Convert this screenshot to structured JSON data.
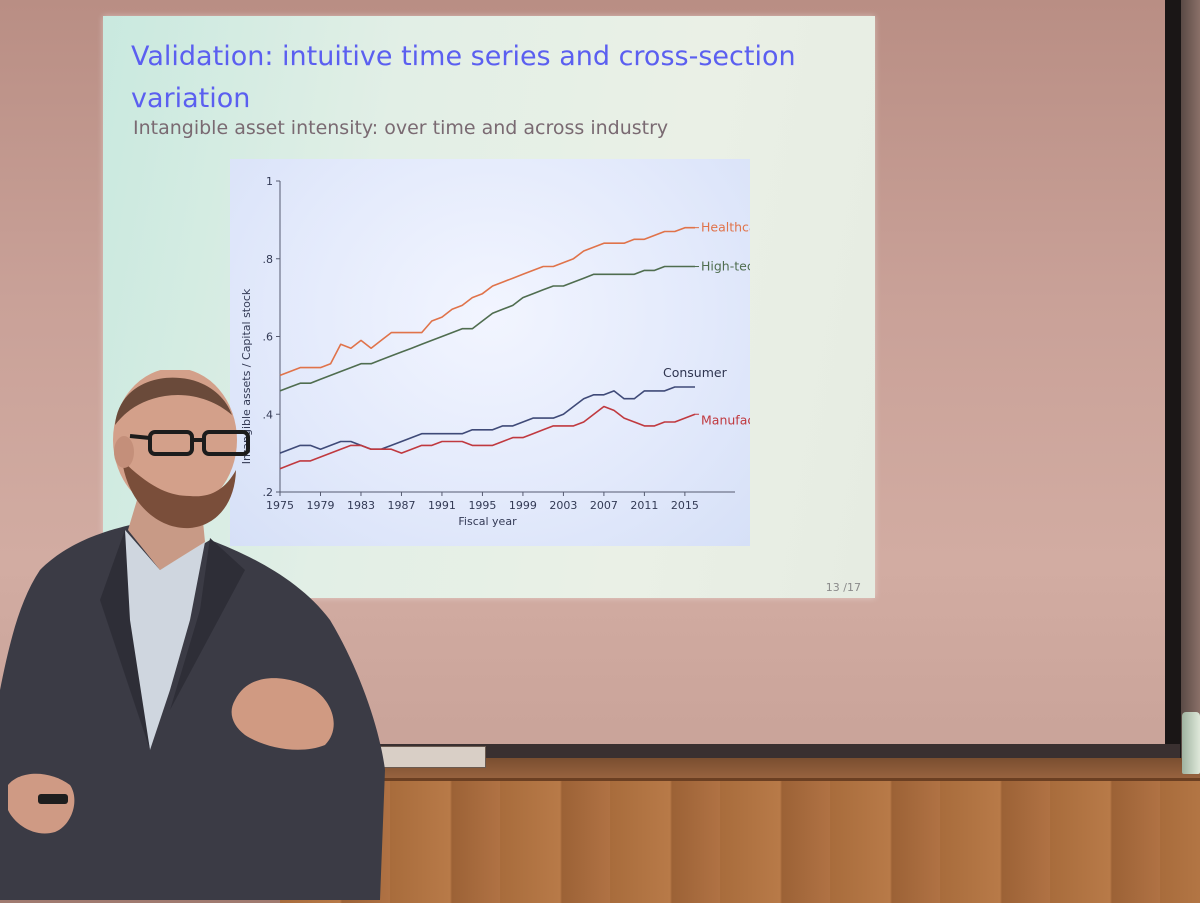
{
  "slide": {
    "title": "Validation: intuitive time series and cross-section variation",
    "subtitle": "Intangible asset intensity: over time and across industry",
    "page_number": "13 /17"
  },
  "chart_data": {
    "type": "line",
    "xlabel": "Fiscal year",
    "ylabel": "Intangible assets / Capital stock",
    "xlim": [
      1975,
      2016
    ],
    "ylim": [
      0.2,
      1.0
    ],
    "xticks": [
      "1975",
      "1979",
      "1983",
      "1987",
      "1991",
      "1995",
      "1999",
      "2003",
      "2007",
      "2011",
      "2015"
    ],
    "yticks": [
      "1",
      ".8",
      ".6",
      ".4",
      ".2"
    ],
    "ytick_values": [
      1.0,
      0.8,
      0.6,
      0.4,
      0.2
    ],
    "x": [
      1975,
      1976,
      1977,
      1978,
      1979,
      1980,
      1981,
      1982,
      1983,
      1984,
      1985,
      1986,
      1987,
      1988,
      1989,
      1990,
      1991,
      1992,
      1993,
      1994,
      1995,
      1996,
      1997,
      1998,
      1999,
      2000,
      2001,
      2002,
      2003,
      2004,
      2005,
      2006,
      2007,
      2008,
      2009,
      2010,
      2011,
      2012,
      2013,
      2014,
      2015,
      2016
    ],
    "series": [
      {
        "name": "Healthcare",
        "color": "#e0734a",
        "values": [
          0.5,
          0.51,
          0.52,
          0.52,
          0.52,
          0.53,
          0.58,
          0.57,
          0.59,
          0.57,
          0.59,
          0.61,
          0.61,
          0.61,
          0.61,
          0.64,
          0.65,
          0.67,
          0.68,
          0.7,
          0.71,
          0.73,
          0.74,
          0.75,
          0.76,
          0.77,
          0.78,
          0.78,
          0.79,
          0.8,
          0.82,
          0.83,
          0.84,
          0.84,
          0.84,
          0.85,
          0.85,
          0.86,
          0.87,
          0.87,
          0.88,
          0.88
        ]
      },
      {
        "name": "High-tech",
        "color": "#4f6d4f",
        "values": [
          0.46,
          0.47,
          0.48,
          0.48,
          0.49,
          0.5,
          0.51,
          0.52,
          0.53,
          0.53,
          0.54,
          0.55,
          0.56,
          0.57,
          0.58,
          0.59,
          0.6,
          0.61,
          0.62,
          0.62,
          0.64,
          0.66,
          0.67,
          0.68,
          0.7,
          0.71,
          0.72,
          0.73,
          0.73,
          0.74,
          0.75,
          0.76,
          0.76,
          0.76,
          0.76,
          0.76,
          0.77,
          0.77,
          0.78,
          0.78,
          0.78,
          0.78
        ]
      },
      {
        "name": "Consumer",
        "color": "#3f4a78",
        "values": [
          0.3,
          0.31,
          0.32,
          0.32,
          0.31,
          0.32,
          0.33,
          0.33,
          0.32,
          0.31,
          0.31,
          0.32,
          0.33,
          0.34,
          0.35,
          0.35,
          0.35,
          0.35,
          0.35,
          0.36,
          0.36,
          0.36,
          0.37,
          0.37,
          0.38,
          0.39,
          0.39,
          0.39,
          0.4,
          0.42,
          0.44,
          0.45,
          0.45,
          0.46,
          0.44,
          0.44,
          0.46,
          0.46,
          0.46,
          0.47,
          0.47,
          0.47
        ]
      },
      {
        "name": "Manufact.",
        "color": "#c0393f",
        "values": [
          0.26,
          0.27,
          0.28,
          0.28,
          0.29,
          0.3,
          0.31,
          0.32,
          0.32,
          0.31,
          0.31,
          0.31,
          0.3,
          0.31,
          0.32,
          0.32,
          0.33,
          0.33,
          0.33,
          0.32,
          0.32,
          0.32,
          0.33,
          0.34,
          0.34,
          0.35,
          0.36,
          0.37,
          0.37,
          0.37,
          0.38,
          0.4,
          0.42,
          0.41,
          0.39,
          0.38,
          0.37,
          0.37,
          0.38,
          0.38,
          0.39,
          0.4
        ]
      }
    ],
    "legend": "inline-right",
    "grid": false
  }
}
